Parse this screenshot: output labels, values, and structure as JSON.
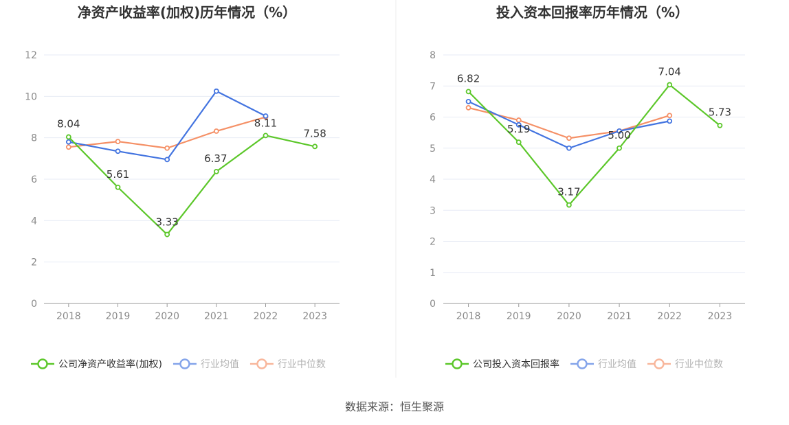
{
  "source": "数据来源：恒生聚源",
  "colors": {
    "company": "#5cc72a",
    "industry_avg": "#4374e0",
    "industry_median": "#f59066",
    "grid": "#e7ebf5",
    "axis": "#999999"
  },
  "chart_data": [
    {
      "type": "line",
      "title": "净资产收益率(加权)历年情况（%）",
      "x": [
        "2018",
        "2019",
        "2020",
        "2021",
        "2022",
        "2023"
      ],
      "ylim": [
        0,
        12
      ],
      "yticks": [
        0,
        2,
        4,
        6,
        8,
        10,
        12
      ],
      "grid": true,
      "legend_position": "bottom",
      "series": [
        {
          "name": "公司净资产收益率(加权)",
          "color_key": "company",
          "values": [
            8.04,
            5.61,
            3.33,
            6.37,
            8.11,
            7.58
          ],
          "labels": [
            "8.04",
            "5.61",
            "3.33",
            "6.37",
            "8.11",
            "7.58"
          ]
        },
        {
          "name": "行业均值",
          "color_key": "industry_avg",
          "values": [
            7.8,
            7.35,
            6.95,
            10.25,
            9.05,
            null
          ]
        },
        {
          "name": "行业中位数",
          "color_key": "industry_median",
          "values": [
            7.55,
            7.82,
            7.5,
            8.32,
            9.0,
            null
          ]
        }
      ]
    },
    {
      "type": "line",
      "title": "投入资本回报率历年情况（%）",
      "x": [
        "2018",
        "2019",
        "2020",
        "2021",
        "2022",
        "2023"
      ],
      "ylim": [
        0,
        8
      ],
      "yticks": [
        0,
        1,
        2,
        3,
        4,
        5,
        6,
        7,
        8
      ],
      "grid": true,
      "legend_position": "bottom",
      "series": [
        {
          "name": "公司投入资本回报率",
          "color_key": "company",
          "values": [
            6.82,
            5.19,
            3.17,
            5.0,
            7.04,
            5.73
          ],
          "labels": [
            "6.82",
            "5.19",
            "3.17",
            "5.00",
            "7.04",
            "5.73"
          ]
        },
        {
          "name": "行业均值",
          "color_key": "industry_avg",
          "values": [
            6.5,
            5.75,
            5.0,
            5.55,
            5.87,
            null
          ]
        },
        {
          "name": "行业中位数",
          "color_key": "industry_median",
          "values": [
            6.3,
            5.9,
            5.32,
            5.55,
            6.05,
            null
          ]
        }
      ]
    }
  ]
}
